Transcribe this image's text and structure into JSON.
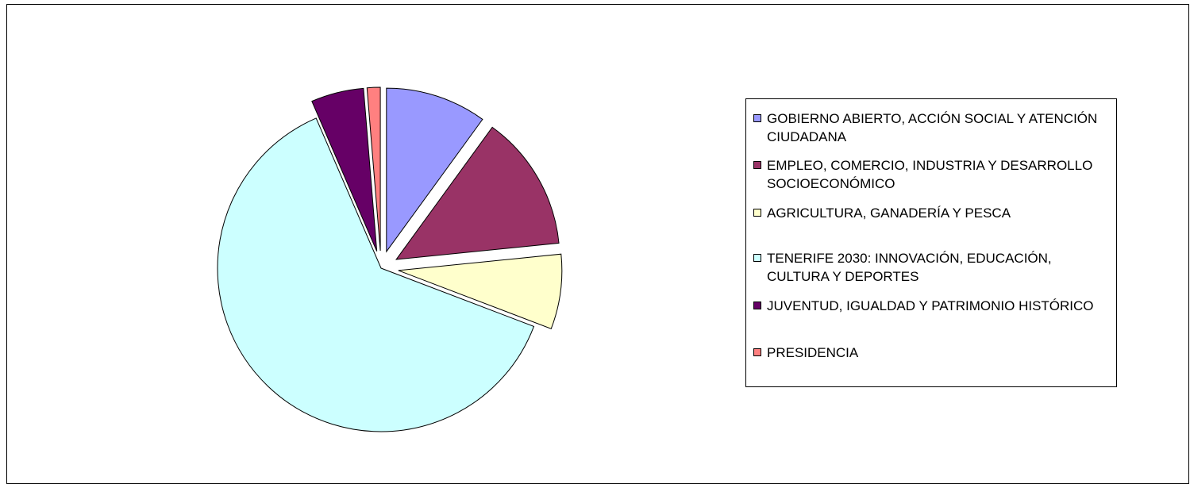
{
  "chart_data": {
    "type": "pie",
    "title": "",
    "exploded": true,
    "legend_position": "right",
    "slices": [
      {
        "label": "GOBIERNO ABIERTO, ACCIÓN SOCIAL Y ATENCIÓN CIUDADANA",
        "value": 10.0,
        "color": "#9999ff"
      },
      {
        "label": "EMPLEO, COMERCIO, INDUSTRIA Y DESARROLLO SOCIOECONÓMICO",
        "value": 13.4,
        "color": "#993366"
      },
      {
        "label": "AGRICULTURA, GANADERÍA Y PESCA",
        "value": 7.4,
        "color": "#ffffcc"
      },
      {
        "label": "TENERIFE 2030: INNOVACIÓN, EDUCACIÓN, CULTURA Y DEPORTES",
        "value": 62.7,
        "color": "#ccffff"
      },
      {
        "label": "JUVENTUD, IGUALDAD Y PATRIMONIO HISTÓRICO",
        "value": 5.2,
        "color": "#660066"
      },
      {
        "label": "PRESIDENCIA",
        "value": 1.3,
        "color": "#ff8080"
      }
    ]
  }
}
